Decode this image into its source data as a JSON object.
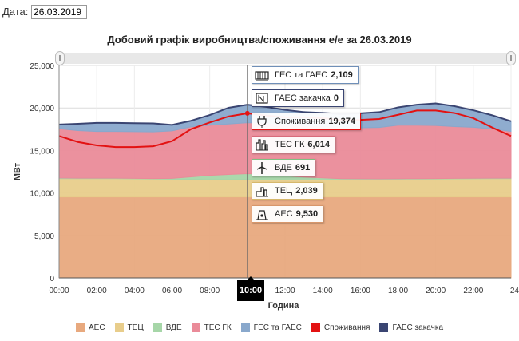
{
  "date_field": {
    "label": "Дата:",
    "value": "26.03.2019"
  },
  "chart_data": {
    "type": "area",
    "title": "Добовий графік виробництва/споживання е/е за 26.03.2019",
    "xlabel": "Година",
    "ylabel": "МВт",
    "ylim": [
      0,
      25000
    ],
    "yticks": [
      "0",
      "5,000",
      "10,000",
      "15,000",
      "20,000",
      "25,000"
    ],
    "xticks": [
      "00:00",
      "02:00",
      "04:00",
      "06:00",
      "08:00",
      "10:00",
      "12:00",
      "14:00",
      "16:00",
      "18:00",
      "20:00",
      "22:00",
      "24"
    ],
    "x": [
      0,
      1,
      2,
      3,
      4,
      5,
      6,
      7,
      8,
      9,
      10,
      11,
      12,
      13,
      14,
      15,
      16,
      17,
      18,
      19,
      20,
      21,
      22,
      23,
      24
    ],
    "stacked_series": [
      {
        "name": "АЕС",
        "color": "#e8a97e",
        "values": [
          9530,
          9530,
          9530,
          9530,
          9530,
          9530,
          9530,
          9530,
          9530,
          9530,
          9530,
          9530,
          9530,
          9530,
          9530,
          9530,
          9530,
          9530,
          9530,
          9530,
          9530,
          9530,
          9530,
          9530,
          9530
        ]
      },
      {
        "name": "ТЕЦ",
        "color": "#e8cd8b",
        "values": [
          2150,
          2150,
          2150,
          2150,
          2120,
          2100,
          2080,
          2060,
          2040,
          2040,
          2039,
          2040,
          2040,
          2040,
          2040,
          2050,
          2060,
          2070,
          2080,
          2090,
          2100,
          2120,
          2140,
          2150,
          2150
        ]
      },
      {
        "name": "ВДЕ",
        "color": "#a6d6a8",
        "values": [
          80,
          60,
          60,
          60,
          60,
          60,
          100,
          300,
          500,
          600,
          691,
          600,
          450,
          300,
          200,
          100,
          80,
          60,
          60,
          60,
          60,
          60,
          60,
          60,
          60
        ]
      },
      {
        "name": "ТЕС ГК",
        "color": "#ea8b99",
        "values": [
          5800,
          5600,
          5500,
          5500,
          5500,
          5500,
          5600,
          5900,
          5900,
          5950,
          6014,
          6050,
          6050,
          6050,
          6050,
          6000,
          6000,
          6050,
          6300,
          6300,
          6250,
          6100,
          6000,
          5800,
          5500
        ]
      },
      {
        "name": "ГЕС та ГАЕС",
        "color": "#89a8cc",
        "values": [
          500,
          800,
          1000,
          1000,
          1000,
          1000,
          700,
          700,
          1200,
          1900,
          2109,
          1900,
          1700,
          1600,
          1600,
          1600,
          1700,
          1800,
          2100,
          2400,
          2600,
          2400,
          2000,
          1600,
          1200
        ]
      }
    ],
    "line_series": [
      {
        "name": "Споживання",
        "color": "#e31212",
        "values": [
          16700,
          16000,
          15600,
          15400,
          15400,
          15500,
          16100,
          17500,
          18300,
          19000,
          19374,
          19100,
          18900,
          18900,
          18800,
          18600,
          18600,
          18700,
          19200,
          19700,
          19700,
          19400,
          18800,
          17700,
          16700
        ]
      },
      {
        "name": "ГАЕС закачка",
        "color": "#3a4572",
        "values": [
          0,
          0,
          0,
          0,
          0,
          0,
          0,
          0,
          0,
          0,
          0,
          0,
          0,
          0,
          0,
          0,
          0,
          0,
          0,
          0,
          0,
          0,
          0,
          0,
          0
        ]
      }
    ],
    "legend": [
      "АЕС",
      "ТЕЦ",
      "ВДЕ",
      "ТЕС ГК",
      "ГЕС та ГАЕС",
      "Споживання",
      "ГАЕС закачка"
    ],
    "legend_colors": [
      "#e8a97e",
      "#e8cd8b",
      "#a6d6a8",
      "#ea8b99",
      "#89a8cc",
      "#e31212",
      "#3a4572"
    ],
    "legend_position": "bottom",
    "grid": true,
    "crosshair_label": "10:00",
    "tooltip": [
      {
        "name": "ГЕС та ГАЕС",
        "value": "2,109",
        "icon": "hydro-plant-icon",
        "border": "#6f8fb8"
      },
      {
        "name": "ГАЕС закачка",
        "value": "0",
        "icon": "pumped-storage-icon",
        "border": "#3a4572"
      },
      {
        "name": "Споживання",
        "value": "19,374",
        "icon": "plug-icon",
        "border": "#e31212"
      },
      {
        "name": "ТЕС ГК",
        "value": "6,014",
        "icon": "thermal-plant-icon",
        "border": "#d86b7b"
      },
      {
        "name": "ВДЕ",
        "value": "691",
        "icon": "wind-turbine-icon",
        "border": "#7fc183"
      },
      {
        "name": "ТЕЦ",
        "value": "2,039",
        "icon": "chp-plant-icon",
        "border": "#d6b86a"
      },
      {
        "name": "АЕС",
        "value": "9,530",
        "icon": "nuclear-plant-icon",
        "border": "#d8966a"
      }
    ]
  }
}
